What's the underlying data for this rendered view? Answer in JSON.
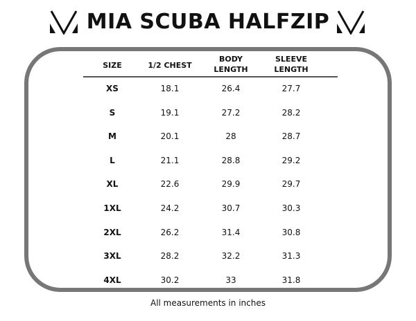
{
  "title": "MIA SCUBA HALFZIP",
  "logo_icon": "v-chevron-logo",
  "headers": [
    [
      "SIZE"
    ],
    [
      "1/2 CHEST"
    ],
    [
      "BODY",
      "LENGTH"
    ],
    [
      "SLEEVE",
      "LENGTH"
    ]
  ],
  "rows": [
    [
      "XS",
      "18.1",
      "26.4",
      "27.7"
    ],
    [
      "S",
      "19.1",
      "27.2",
      "28.2"
    ],
    [
      "M",
      "20.1",
      "28",
      "28.7"
    ],
    [
      "L",
      "21.1",
      "28.8",
      "29.2"
    ],
    [
      "XL",
      "22.6",
      "29.9",
      "29.7"
    ],
    [
      "1XL",
      "24.2",
      "30.7",
      "30.3"
    ],
    [
      "2XL",
      "26.2",
      "31.4",
      "30.8"
    ],
    [
      "3XL",
      "28.2",
      "32.2",
      "31.3"
    ],
    [
      "4XL",
      "30.2",
      "33",
      "31.8"
    ]
  ],
  "footer": "All measurements in inches",
  "colors": {
    "border": "#777777",
    "text": "#111111"
  }
}
